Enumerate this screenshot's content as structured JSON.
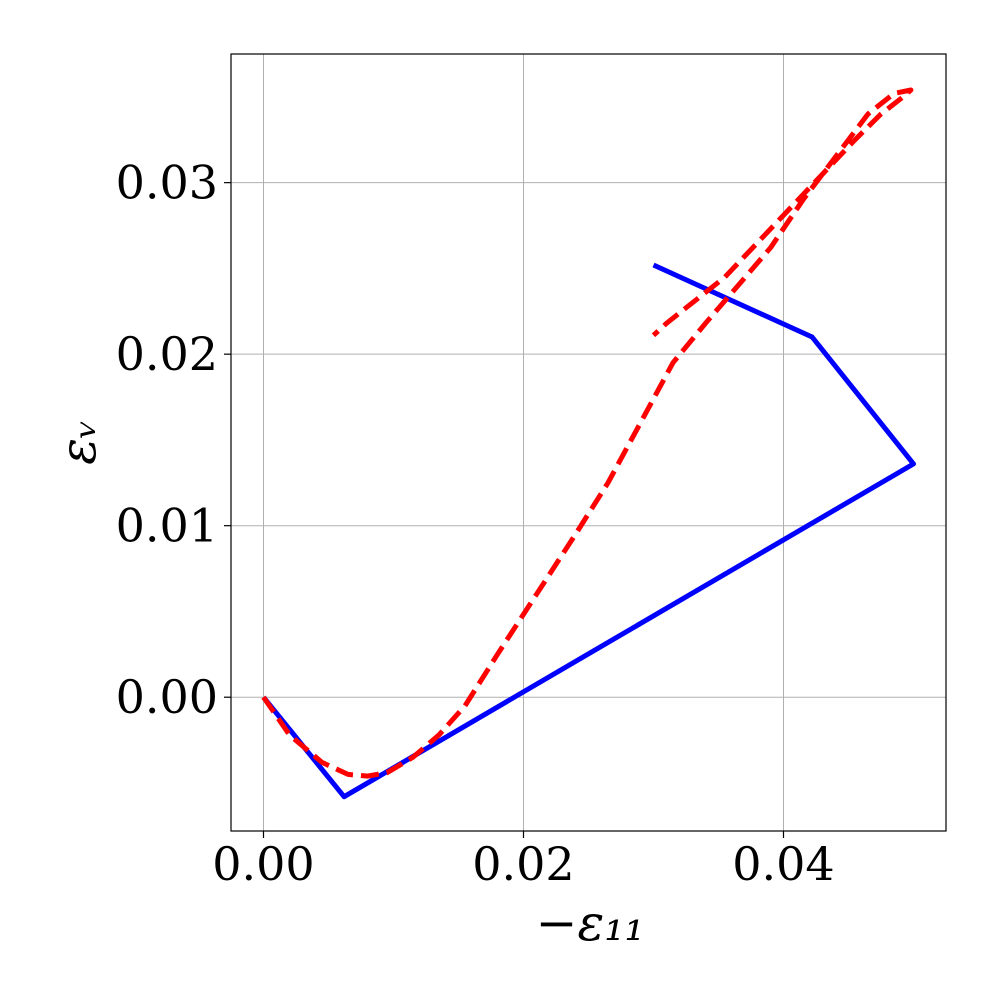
{
  "chart_data": {
    "type": "line",
    "title": "",
    "xlabel": "−ε₁₁",
    "ylabel": "εᵥ",
    "xlim": [
      -0.0025,
      0.0525
    ],
    "ylim": [
      -0.0078,
      0.0375
    ],
    "xticks": [
      0.0,
      0.02,
      0.04
    ],
    "xtick_labels": [
      "0.00",
      "0.02",
      "0.04"
    ],
    "yticks": [
      0.0,
      0.01,
      0.02,
      0.03
    ],
    "ytick_labels": [
      "0.00",
      "0.01",
      "0.02",
      "0.03"
    ],
    "grid": true,
    "legend": "none",
    "series": [
      {
        "color": "#0000ff",
        "style": "solid",
        "x": [
          0.0,
          0.0062,
          0.05,
          0.0422,
          0.03
        ],
        "y": [
          0.0,
          -0.0058,
          0.0136,
          0.021,
          0.0252
        ]
      },
      {
        "color": "#ff0000",
        "style": "dashed",
        "x": [
          0.0,
          0.002,
          0.0045,
          0.0065,
          0.008,
          0.0095,
          0.0115,
          0.0135,
          0.0155,
          0.018,
          0.021,
          0.024,
          0.0265,
          0.029,
          0.0315,
          0.034,
          0.0365,
          0.039,
          0.0415,
          0.044,
          0.0465,
          0.0485,
          0.0498,
          0.0492,
          0.0475,
          0.0455,
          0.043,
          0.0405,
          0.038,
          0.0355,
          0.033,
          0.031,
          0.03
        ],
        "y": [
          0.0,
          -0.0022,
          -0.0038,
          -0.0045,
          -0.0046,
          -0.0044,
          -0.0035,
          -0.0022,
          -0.0005,
          0.0025,
          0.006,
          0.0095,
          0.0125,
          0.016,
          0.0195,
          0.0218,
          0.024,
          0.0262,
          0.029,
          0.0315,
          0.034,
          0.0352,
          0.0354,
          0.035,
          0.034,
          0.0325,
          0.0305,
          0.0285,
          0.0265,
          0.0245,
          0.023,
          0.0218,
          0.0211
        ]
      }
    ]
  }
}
